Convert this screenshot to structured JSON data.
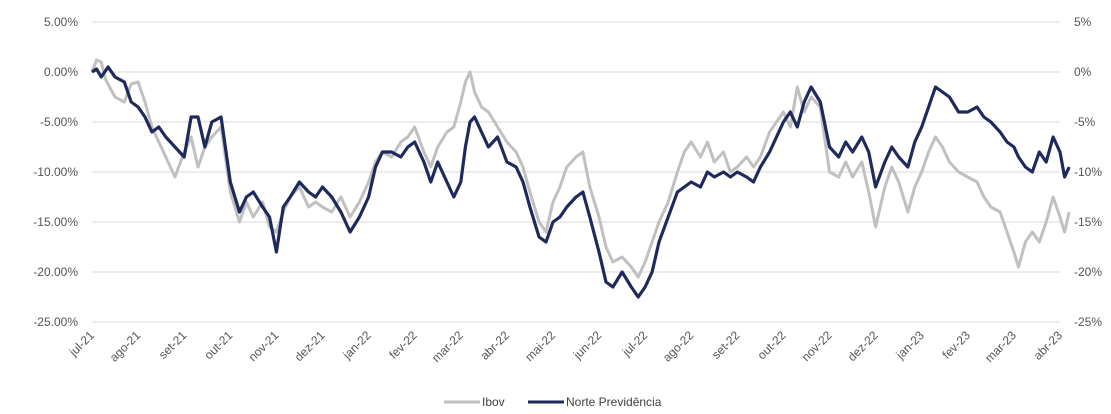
{
  "chart_data": {
    "type": "line",
    "title": "",
    "xlabel": "",
    "ylabel": "",
    "grid": "horizontal",
    "legend_position": "bottom-center",
    "x_tick_labels": [
      "jul-21",
      "ago-21",
      "set-21",
      "out-21",
      "nov-21",
      "dez-21",
      "jan-22",
      "fev-22",
      "mar-22",
      "abr-22",
      "mai-22",
      "jun-22",
      "jul-22",
      "ago-22",
      "set-22",
      "out-22",
      "nov-22",
      "dez-22",
      "jan-23",
      "fev-23",
      "mar-23",
      "abr-23"
    ],
    "y_left": {
      "ylim": [
        -25,
        5
      ],
      "ticks": [
        5,
        0,
        -5,
        -10,
        -15,
        -20,
        -25
      ],
      "tick_labels": [
        "5.00%",
        "0.00%",
        "-5.00%",
        "-10.00%",
        "-15.00%",
        "-20.00%",
        "-25.00%"
      ]
    },
    "y_right": {
      "ylim": [
        -25,
        5
      ],
      "ticks": [
        5,
        0,
        -5,
        -10,
        -15,
        -20,
        -25
      ],
      "tick_labels": [
        "5%",
        "0%",
        "-5%",
        "-10%",
        "-15%",
        "-20%",
        "-25%"
      ]
    },
    "series": [
      {
        "name": "Ibov",
        "color": "#c0c0c0",
        "points": [
          [
            "jul-21",
            0.0
          ],
          [
            "jul-21+0.1",
            1.2
          ],
          [
            "jul-21+0.2",
            1.0
          ],
          [
            "jul-21+0.3",
            -0.8
          ],
          [
            "jul-21+0.5",
            -2.5
          ],
          [
            "jul-21+0.7",
            -3.0
          ],
          [
            "jul-21+0.85",
            -1.2
          ],
          [
            "ago-21",
            -1.0
          ],
          [
            "ago-21+0.15",
            -3.0
          ],
          [
            "ago-21+0.3",
            -5.5
          ],
          [
            "ago-21+0.45",
            -7.0
          ],
          [
            "ago-21+0.6",
            -8.5
          ],
          [
            "ago-21+0.8",
            -10.5
          ],
          [
            "set-21",
            -8.0
          ],
          [
            "set-21+0.15",
            -6.5
          ],
          [
            "set-21+0.3",
            -9.5
          ],
          [
            "set-21+0.45",
            -7.5
          ],
          [
            "set-21+0.6",
            -6.5
          ],
          [
            "set-21+0.8",
            -5.5
          ],
          [
            "out-21",
            -12.0
          ],
          [
            "out-21+0.2",
            -15.0
          ],
          [
            "out-21+0.35",
            -13.0
          ],
          [
            "out-21+0.5",
            -14.5
          ],
          [
            "out-21+0.7",
            -13.0
          ],
          [
            "out-21+0.85",
            -15.5
          ],
          [
            "nov-21",
            -16.0
          ],
          [
            "nov-21+0.15",
            -14.0
          ],
          [
            "nov-21+0.3",
            -12.5
          ],
          [
            "nov-21+0.5",
            -11.5
          ],
          [
            "nov-21+0.7",
            -13.5
          ],
          [
            "nov-21+0.85",
            -13.0
          ],
          [
            "dez-21",
            -13.5
          ],
          [
            "dez-21+0.2",
            -14.0
          ],
          [
            "dez-21+0.4",
            -12.5
          ],
          [
            "dez-21+0.6",
            -14.5
          ],
          [
            "dez-21+0.8",
            -13.0
          ],
          [
            "jan-22",
            -11.0
          ],
          [
            "jan-22+0.15",
            -9.0
          ],
          [
            "jan-22+0.3",
            -8.0
          ],
          [
            "jan-22+0.5",
            -8.5
          ],
          [
            "jan-22+0.7",
            -7.0
          ],
          [
            "jan-22+0.85",
            -6.5
          ],
          [
            "fev-22",
            -5.5
          ],
          [
            "fev-22+0.2",
            -8.0
          ],
          [
            "fev-22+0.35",
            -9.5
          ],
          [
            "fev-22+0.5",
            -7.5
          ],
          [
            "fev-22+0.7",
            -6.0
          ],
          [
            "fev-22+0.85",
            -5.5
          ],
          [
            "mar-22",
            -3.0
          ],
          [
            "mar-22+0.1",
            -1.0
          ],
          [
            "mar-22+0.2",
            0.0
          ],
          [
            "mar-22+0.3",
            -2.0
          ],
          [
            "mar-22+0.45",
            -3.5
          ],
          [
            "mar-22+0.6",
            -4.0
          ],
          [
            "mar-22+0.8",
            -5.5
          ],
          [
            "abr-22",
            -7.0
          ],
          [
            "abr-22+0.2",
            -8.0
          ],
          [
            "abr-22+0.35",
            -9.5
          ],
          [
            "abr-22+0.5",
            -12.0
          ],
          [
            "abr-22+0.7",
            -15.0
          ],
          [
            "abr-22+0.85",
            -16.0
          ],
          [
            "mai-22",
            -13.0
          ],
          [
            "mai-22+0.15",
            -11.5
          ],
          [
            "mai-22+0.3",
            -9.5
          ],
          [
            "mai-22+0.5",
            -8.5
          ],
          [
            "mai-22+0.65",
            -8.0
          ],
          [
            "mai-22+0.8",
            -11.5
          ],
          [
            "jun-22",
            -14.5
          ],
          [
            "jun-22+0.15",
            -17.5
          ],
          [
            "jun-22+0.3",
            -19.0
          ],
          [
            "jun-22+0.5",
            -18.5
          ],
          [
            "jun-22+0.7",
            -19.5
          ],
          [
            "jun-22+0.85",
            -20.5
          ],
          [
            "jul-22",
            -19.0
          ],
          [
            "jul-22+0.15",
            -17.0
          ],
          [
            "jul-22+0.3",
            -15.0
          ],
          [
            "jul-22+0.5",
            -13.0
          ],
          [
            "jul-22+0.7",
            -10.0
          ],
          [
            "jul-22+0.85",
            -8.0
          ],
          [
            "ago-22",
            -7.0
          ],
          [
            "ago-22+0.2",
            -8.5
          ],
          [
            "ago-22+0.35",
            -7.0
          ],
          [
            "ago-22+0.5",
            -9.0
          ],
          [
            "ago-22+0.7",
            -8.0
          ],
          [
            "ago-22+0.85",
            -10.0
          ],
          [
            "set-22",
            -9.5
          ],
          [
            "set-22+0.2",
            -8.5
          ],
          [
            "set-22+0.35",
            -9.5
          ],
          [
            "set-22+0.5",
            -8.5
          ],
          [
            "set-22+0.7",
            -6.0
          ],
          [
            "set-22+0.85",
            -5.0
          ],
          [
            "out-22",
            -4.0
          ],
          [
            "out-22+0.15",
            -5.5
          ],
          [
            "out-22+0.3",
            -1.5
          ],
          [
            "out-22+0.45",
            -4.0
          ],
          [
            "out-22+0.6",
            -2.5
          ],
          [
            "out-22+0.8",
            -3.5
          ],
          [
            "nov-22",
            -10.0
          ],
          [
            "nov-22+0.2",
            -10.5
          ],
          [
            "nov-22+0.35",
            -9.0
          ],
          [
            "nov-22+0.5",
            -10.5
          ],
          [
            "nov-22+0.7",
            -9.0
          ],
          [
            "nov-22+0.85",
            -12.0
          ],
          [
            "dez-22",
            -15.5
          ],
          [
            "dez-22+0.2",
            -11.5
          ],
          [
            "dez-22+0.35",
            -9.5
          ],
          [
            "dez-22+0.5",
            -11.0
          ],
          [
            "dez-22+0.7",
            -14.0
          ],
          [
            "dez-22+0.85",
            -11.5
          ],
          [
            "jan-23",
            -10.0
          ],
          [
            "jan-23+0.15",
            -8.0
          ],
          [
            "jan-23+0.3",
            -6.5
          ],
          [
            "jan-23+0.45",
            -7.5
          ],
          [
            "jan-23+0.6",
            -9.0
          ],
          [
            "jan-23+0.8",
            -10.0
          ],
          [
            "fev-23",
            -10.5
          ],
          [
            "fev-23+0.2",
            -11.0
          ],
          [
            "fev-23+0.35",
            -12.5
          ],
          [
            "fev-23+0.5",
            -13.5
          ],
          [
            "fev-23+0.7",
            -14.0
          ],
          [
            "fev-23+0.85",
            -16.0
          ],
          [
            "mar-23",
            -18.0
          ],
          [
            "mar-23+0.1",
            -19.5
          ],
          [
            "mar-23+0.25",
            -17.0
          ],
          [
            "mar-23+0.4",
            -16.0
          ],
          [
            "mar-23+0.55",
            -17.0
          ],
          [
            "mar-23+0.7",
            -15.0
          ],
          [
            "mar-23+0.85",
            -12.5
          ],
          [
            "abr-23",
            -14.5
          ],
          [
            "abr-23+0.1",
            -16.0
          ],
          [
            "abr-23+0.2",
            -14.0
          ]
        ]
      },
      {
        "name": "Norte Previdência",
        "color": "#1f2a5c",
        "points": [
          [
            "jul-21",
            0.0
          ],
          [
            "jul-21+0.1",
            0.3
          ],
          [
            "jul-21+0.2",
            -0.5
          ],
          [
            "jul-21+0.35",
            0.5
          ],
          [
            "jul-21+0.5",
            -0.5
          ],
          [
            "jul-21+0.7",
            -1.0
          ],
          [
            "jul-21+0.85",
            -3.0
          ],
          [
            "ago-21",
            -3.5
          ],
          [
            "ago-21+0.15",
            -4.5
          ],
          [
            "ago-21+0.3",
            -6.0
          ],
          [
            "ago-21+0.45",
            -5.5
          ],
          [
            "ago-21+0.6",
            -6.5
          ],
          [
            "ago-21+0.8",
            -7.5
          ],
          [
            "set-21",
            -8.5
          ],
          [
            "set-21+0.15",
            -4.5
          ],
          [
            "set-21+0.3",
            -4.5
          ],
          [
            "set-21+0.45",
            -7.5
          ],
          [
            "set-21+0.6",
            -5.0
          ],
          [
            "set-21+0.8",
            -4.5
          ],
          [
            "out-21",
            -11.0
          ],
          [
            "out-21+0.2",
            -14.0
          ],
          [
            "out-21+0.35",
            -12.5
          ],
          [
            "out-21+0.5",
            -12.0
          ],
          [
            "out-21+0.7",
            -13.5
          ],
          [
            "out-21+0.85",
            -14.5
          ],
          [
            "nov-21",
            -18.0
          ],
          [
            "nov-21+0.15",
            -13.5
          ],
          [
            "nov-21+0.3",
            -12.5
          ],
          [
            "nov-21+0.5",
            -11.0
          ],
          [
            "nov-21+0.7",
            -12.0
          ],
          [
            "nov-21+0.85",
            -12.5
          ],
          [
            "dez-21",
            -11.5
          ],
          [
            "dez-21+0.2",
            -12.5
          ],
          [
            "dez-21+0.4",
            -14.0
          ],
          [
            "dez-21+0.6",
            -16.0
          ],
          [
            "dez-21+0.8",
            -14.5
          ],
          [
            "jan-22",
            -12.5
          ],
          [
            "jan-22+0.15",
            -9.5
          ],
          [
            "jan-22+0.3",
            -8.0
          ],
          [
            "jan-22+0.5",
            -8.0
          ],
          [
            "jan-22+0.7",
            -8.5
          ],
          [
            "jan-22+0.85",
            -7.5
          ],
          [
            "fev-22",
            -7.0
          ],
          [
            "fev-22+0.2",
            -9.0
          ],
          [
            "fev-22+0.35",
            -11.0
          ],
          [
            "fev-22+0.5",
            -9.0
          ],
          [
            "fev-22+0.7",
            -11.0
          ],
          [
            "fev-22+0.85",
            -12.5
          ],
          [
            "mar-22",
            -11.0
          ],
          [
            "mar-22+0.1",
            -7.5
          ],
          [
            "mar-22+0.2",
            -5.0
          ],
          [
            "mar-22+0.3",
            -4.5
          ],
          [
            "mar-22+0.45",
            -6.0
          ],
          [
            "mar-22+0.6",
            -7.5
          ],
          [
            "mar-22+0.8",
            -6.5
          ],
          [
            "abr-22",
            -9.0
          ],
          [
            "abr-22+0.2",
            -9.5
          ],
          [
            "abr-22+0.35",
            -11.0
          ],
          [
            "abr-22+0.5",
            -13.5
          ],
          [
            "abr-22+0.7",
            -16.5
          ],
          [
            "abr-22+0.85",
            -17.0
          ],
          [
            "mai-22",
            -15.0
          ],
          [
            "mai-22+0.15",
            -14.5
          ],
          [
            "mai-22+0.3",
            -13.5
          ],
          [
            "mai-22+0.5",
            -12.5
          ],
          [
            "mai-22+0.65",
            -12.0
          ],
          [
            "mai-22+0.8",
            -14.5
          ],
          [
            "jun-22",
            -18.0
          ],
          [
            "jun-22+0.15",
            -21.0
          ],
          [
            "jun-22+0.3",
            -21.5
          ],
          [
            "jun-22+0.5",
            -20.0
          ],
          [
            "jun-22+0.7",
            -21.5
          ],
          [
            "jun-22+0.85",
            -22.5
          ],
          [
            "jul-22",
            -21.5
          ],
          [
            "jul-22+0.15",
            -20.0
          ],
          [
            "jul-22+0.3",
            -17.0
          ],
          [
            "jul-22+0.5",
            -14.5
          ],
          [
            "jul-22+0.7",
            -12.0
          ],
          [
            "jul-22+0.85",
            -11.5
          ],
          [
            "ago-22",
            -11.0
          ],
          [
            "ago-22+0.2",
            -11.5
          ],
          [
            "ago-22+0.35",
            -10.0
          ],
          [
            "ago-22+0.5",
            -10.5
          ],
          [
            "ago-22+0.7",
            -10.0
          ],
          [
            "ago-22+0.85",
            -10.5
          ],
          [
            "set-22",
            -10.0
          ],
          [
            "set-22+0.2",
            -10.5
          ],
          [
            "set-22+0.35",
            -11.0
          ],
          [
            "set-22+0.5",
            -9.5
          ],
          [
            "set-22+0.7",
            -8.0
          ],
          [
            "set-22+0.85",
            -6.5
          ],
          [
            "out-22",
            -5.0
          ],
          [
            "out-22+0.15",
            -4.0
          ],
          [
            "out-22+0.3",
            -5.5
          ],
          [
            "out-22+0.45",
            -3.0
          ],
          [
            "out-22+0.6",
            -1.5
          ],
          [
            "out-22+0.8",
            -3.0
          ],
          [
            "nov-22",
            -7.5
          ],
          [
            "nov-22+0.2",
            -8.5
          ],
          [
            "nov-22+0.35",
            -7.0
          ],
          [
            "nov-22+0.5",
            -8.0
          ],
          [
            "nov-22+0.7",
            -6.5
          ],
          [
            "nov-22+0.85",
            -8.0
          ],
          [
            "dez-22",
            -11.5
          ],
          [
            "dez-22+0.2",
            -9.0
          ],
          [
            "dez-22+0.35",
            -7.5
          ],
          [
            "dez-22+0.5",
            -8.5
          ],
          [
            "dez-22+0.7",
            -9.5
          ],
          [
            "dez-22+0.85",
            -7.0
          ],
          [
            "jan-23",
            -5.5
          ],
          [
            "jan-23+0.15",
            -3.5
          ],
          [
            "jan-23+0.3",
            -1.5
          ],
          [
            "jan-23+0.45",
            -2.0
          ],
          [
            "jan-23+0.6",
            -2.5
          ],
          [
            "jan-23+0.8",
            -4.0
          ],
          [
            "fev-23",
            -4.0
          ],
          [
            "fev-23+0.2",
            -3.5
          ],
          [
            "fev-23+0.35",
            -4.5
          ],
          [
            "fev-23+0.5",
            -5.0
          ],
          [
            "fev-23+0.7",
            -6.0
          ],
          [
            "fev-23+0.85",
            -7.0
          ],
          [
            "mar-23",
            -7.5
          ],
          [
            "mar-23+0.1",
            -8.5
          ],
          [
            "mar-23+0.25",
            -9.5
          ],
          [
            "mar-23+0.4",
            -10.0
          ],
          [
            "mar-23+0.55",
            -8.0
          ],
          [
            "mar-23+0.7",
            -9.0
          ],
          [
            "mar-23+0.85",
            -6.5
          ],
          [
            "abr-23",
            -8.0
          ],
          [
            "abr-23+0.1",
            -10.5
          ],
          [
            "abr-23+0.2",
            -9.5
          ]
        ]
      }
    ]
  }
}
